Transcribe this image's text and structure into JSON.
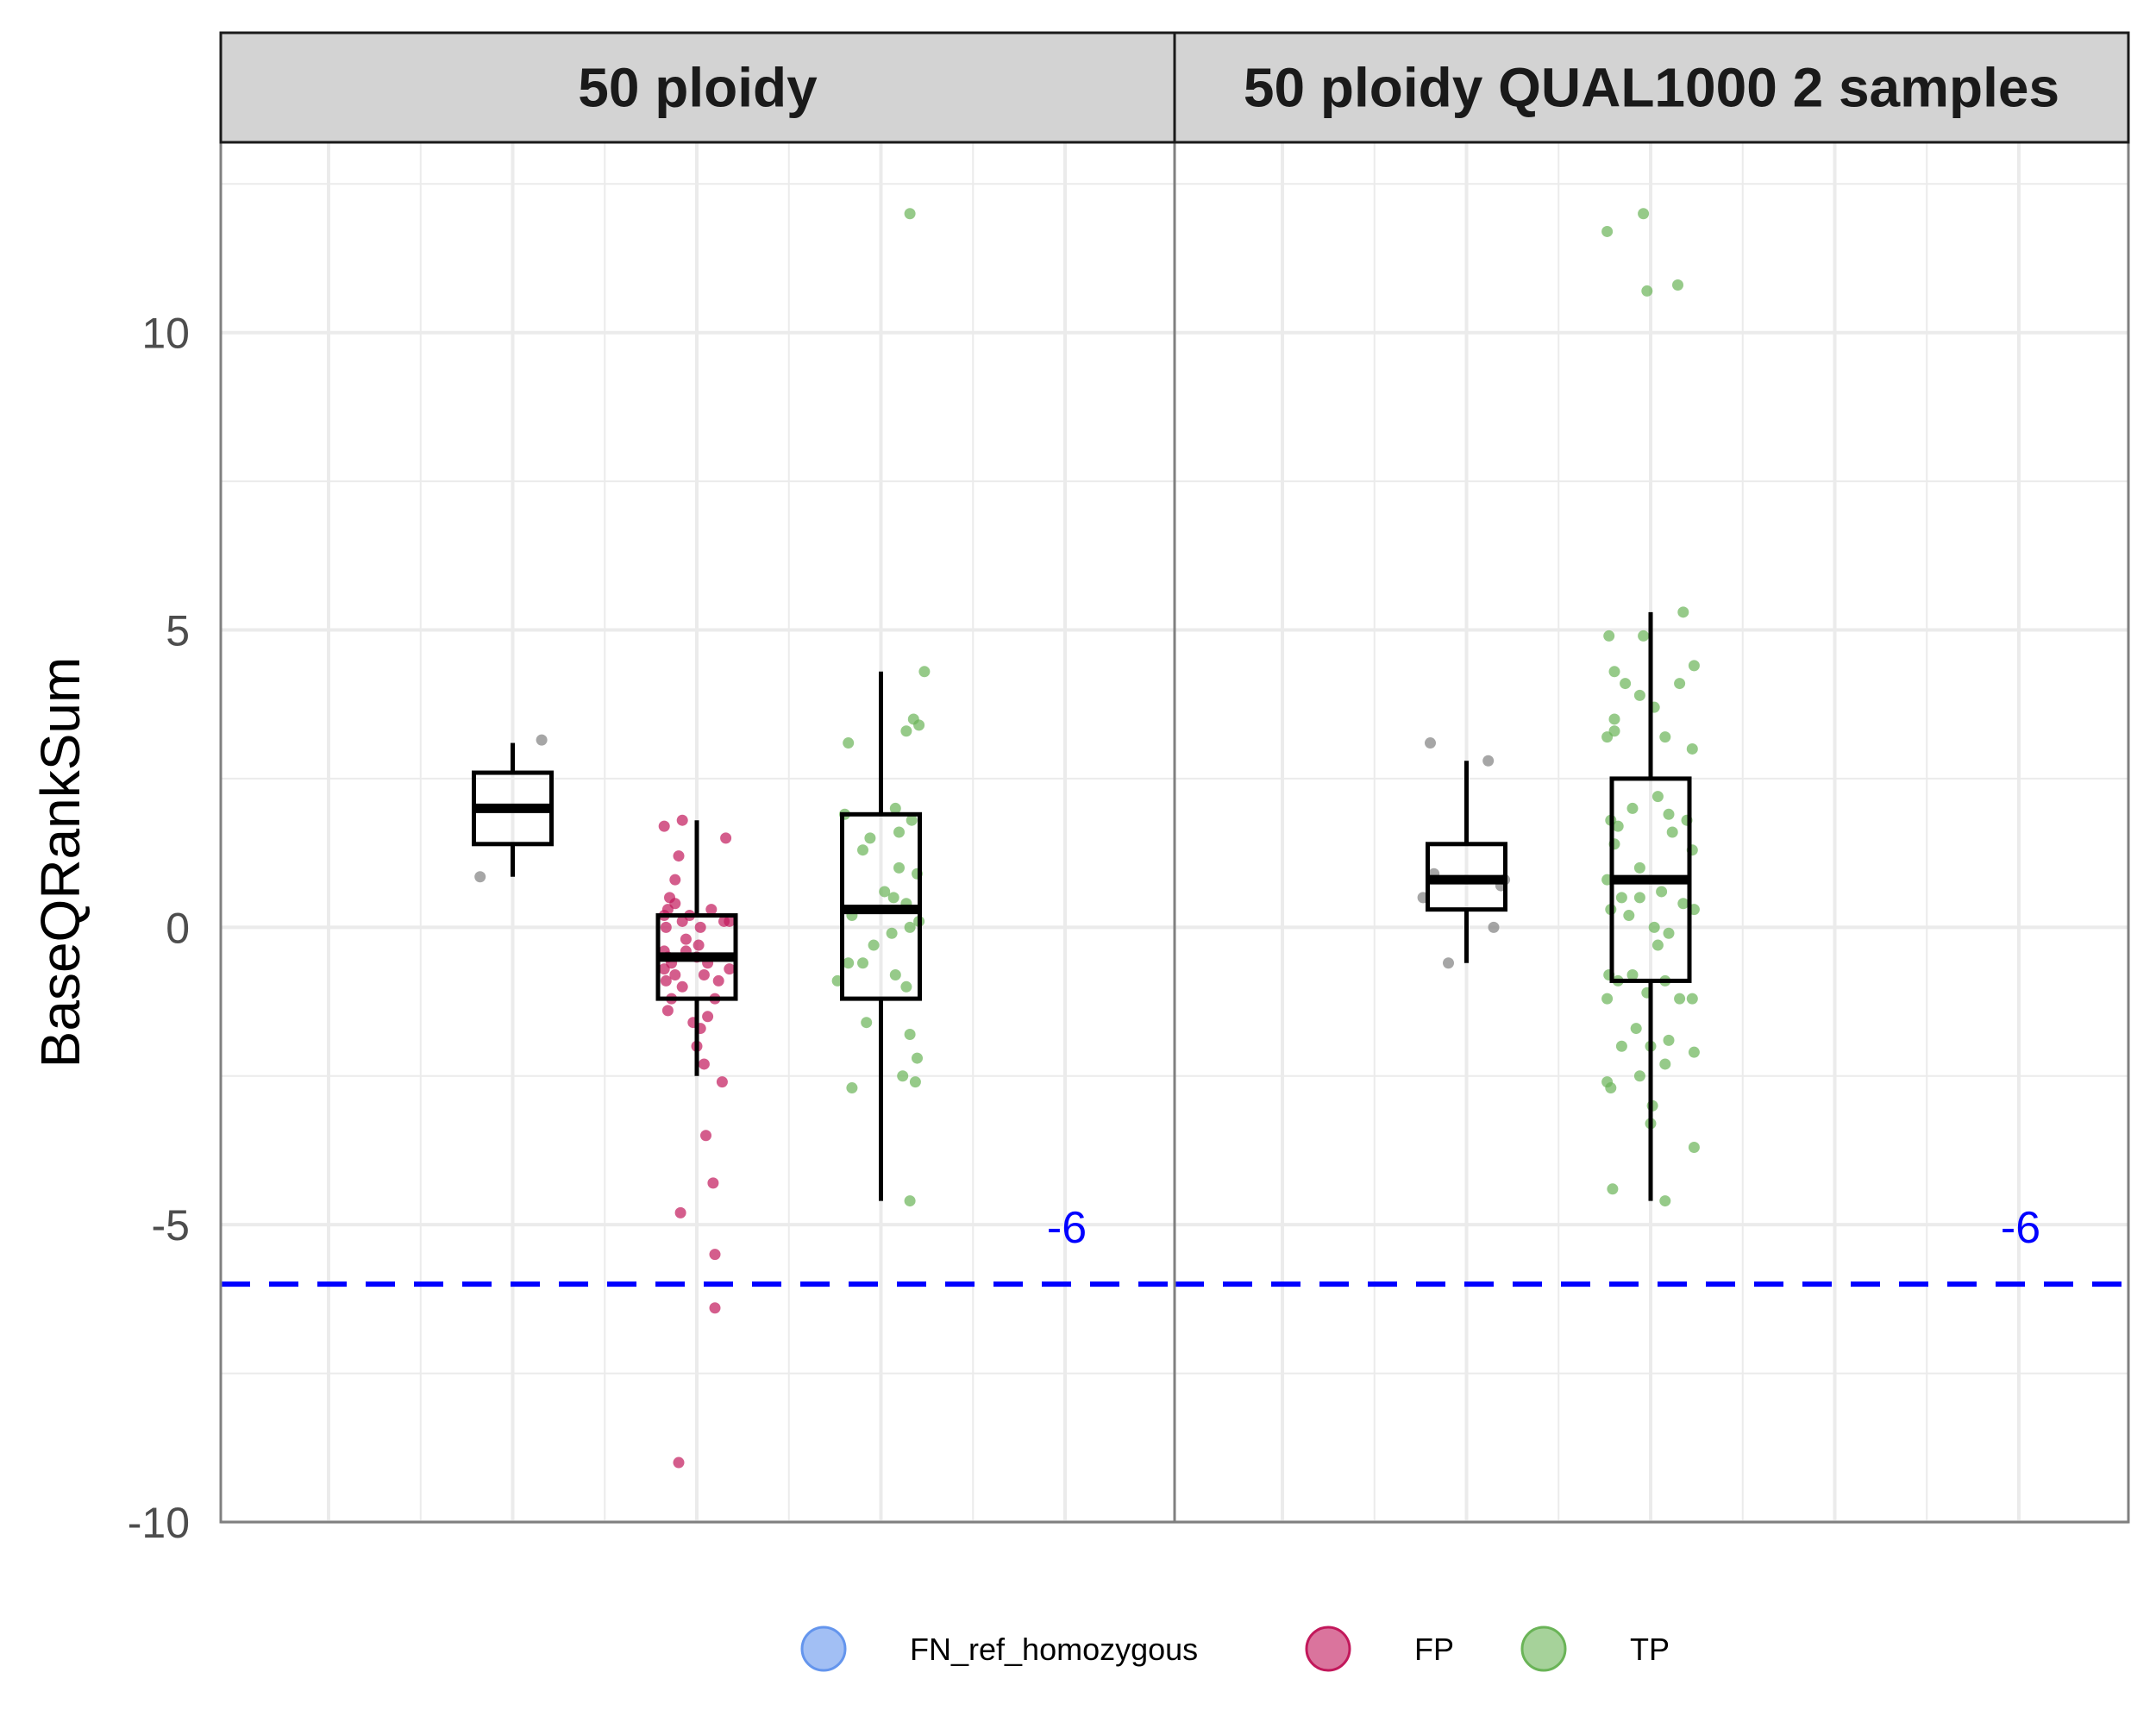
{
  "chart_data": {
    "type": "box",
    "ylabel": "BaseQRankSum",
    "xlabel": "",
    "ylim": [
      -10,
      13.2
    ],
    "yticks": [
      "-10",
      "-5",
      "0",
      "5",
      "10"
    ],
    "grid": true,
    "legend_position": "bottom",
    "legend": [
      {
        "label": "FN_ref_homozygous",
        "color": "#6495ED"
      },
      {
        "label": "FP",
        "color": "#C2185B"
      },
      {
        "label": "TP",
        "color": "#6AB457"
      }
    ],
    "reference_line": {
      "y": -6,
      "label": "-6",
      "color": "#0000FF"
    },
    "panels": [
      {
        "title": "50 ploidy",
        "groups": [
          {
            "name": "",
            "color": "#808080",
            "box": {
              "lower": 1.4,
              "q1": 1.4,
              "median": 2.0,
              "q3": 2.6,
              "upper": 3.1,
              "whisker_low": 0.85,
              "whisker_high": 3.1
            },
            "points": [
              [
                -0.9,
                0.85
              ],
              [
                0.8,
                3.15
              ]
            ]
          },
          {
            "name": "FP",
            "color": "#C2185B",
            "box": {
              "q1": -1.2,
              "median": -0.5,
              "q3": 0.2,
              "whisker_low": -2.5,
              "whisker_high": 1.8
            },
            "points": [
              [
                -0.9,
                1.7
              ],
              [
                -0.4,
                1.8
              ],
              [
                -0.5,
                1.2
              ],
              [
                0.8,
                1.5
              ],
              [
                -0.6,
                0.8
              ],
              [
                -0.75,
                0.5
              ],
              [
                -0.6,
                0.4
              ],
              [
                -0.8,
                0.3
              ],
              [
                -0.9,
                0.2
              ],
              [
                -0.85,
                0.0
              ],
              [
                -0.4,
                0.1
              ],
              [
                0.4,
                0.3
              ],
              [
                0.75,
                0.1
              ],
              [
                0.9,
                0.1
              ],
              [
                -0.2,
                0.2
              ],
              [
                0.1,
                0.0
              ],
              [
                -0.9,
                -0.4
              ],
              [
                -0.8,
                -0.5
              ],
              [
                -0.9,
                -0.7
              ],
              [
                -0.7,
                -0.6
              ],
              [
                -0.6,
                -0.8
              ],
              [
                -0.3,
                -0.4
              ],
              [
                0.0,
                -0.5
              ],
              [
                0.3,
                -0.6
              ],
              [
                0.6,
                -0.9
              ],
              [
                0.9,
                -0.7
              ],
              [
                -0.85,
                -0.9
              ],
              [
                -0.7,
                -1.2
              ],
              [
                -0.8,
                -1.4
              ],
              [
                -0.4,
                -1.0
              ],
              [
                0.2,
                -0.8
              ],
              [
                0.5,
                -1.2
              ],
              [
                -0.1,
                -1.6
              ],
              [
                0.1,
                -1.7
              ],
              [
                0.3,
                -1.5
              ],
              [
                0.0,
                -2.0
              ],
              [
                0.2,
                -2.3
              ],
              [
                0.7,
                -2.6
              ],
              [
                0.25,
                -3.5
              ],
              [
                -0.45,
                -4.8
              ],
              [
                0.45,
                -4.3
              ],
              [
                0.5,
                -5.5
              ],
              [
                0.5,
                -6.4
              ],
              [
                -0.5,
                -9.0
              ],
              [
                -0.3,
                -0.2
              ],
              [
                0.05,
                -0.3
              ]
            ]
          },
          {
            "name": "TP",
            "color": "#6AB457",
            "box": {
              "q1": -1.2,
              "median": 0.3,
              "q3": 1.9,
              "whisker_low": -4.6,
              "whisker_high": 4.3
            },
            "points": [
              [
                0.8,
                12.0
              ],
              [
                1.2,
                4.3
              ],
              [
                -0.9,
                3.1
              ],
              [
                0.7,
                3.3
              ],
              [
                0.9,
                3.5
              ],
              [
                1.05,
                3.4
              ],
              [
                -1.0,
                1.9
              ],
              [
                0.4,
                2.0
              ],
              [
                -0.3,
                1.5
              ],
              [
                0.5,
                1.6
              ],
              [
                0.85,
                1.8
              ],
              [
                -0.5,
                1.3
              ],
              [
                0.5,
                1.0
              ],
              [
                1.0,
                0.9
              ],
              [
                0.1,
                0.6
              ],
              [
                0.35,
                0.5
              ],
              [
                0.7,
                0.4
              ],
              [
                -0.8,
                0.2
              ],
              [
                0.8,
                0.0
              ],
              [
                1.05,
                0.1
              ],
              [
                -0.5,
                -0.6
              ],
              [
                -1.2,
                -0.9
              ],
              [
                -0.9,
                -0.6
              ],
              [
                0.4,
                -0.8
              ],
              [
                0.7,
                -1.0
              ],
              [
                -0.4,
                -1.6
              ],
              [
                0.8,
                -1.8
              ],
              [
                1.0,
                -2.2
              ],
              [
                0.6,
                -2.5
              ],
              [
                -0.8,
                -2.7
              ],
              [
                0.95,
                -2.6
              ],
              [
                0.8,
                -4.6
              ],
              [
                -0.2,
                -0.3
              ],
              [
                0.3,
                -0.1
              ]
            ]
          }
        ]
      },
      {
        "title": "50 ploidy QUAL1000 2 samples",
        "groups": [
          {
            "name": "",
            "color": "#808080",
            "box": {
              "q1": 0.3,
              "median": 0.8,
              "q3": 1.4,
              "whisker_low": -0.6,
              "whisker_high": 2.8
            },
            "points": [
              [
                -1.0,
                3.1
              ],
              [
                0.6,
                2.8
              ],
              [
                -0.9,
                0.9
              ],
              [
                -1.2,
                0.5
              ],
              [
                1.05,
                0.8
              ],
              [
                0.95,
                0.7
              ],
              [
                -0.5,
                -0.6
              ],
              [
                0.75,
                0.0
              ]
            ]
          },
          {
            "name": "TP",
            "color": "#6AB457",
            "box": {
              "q1": -0.9,
              "median": 0.8,
              "q3": 2.5,
              "whisker_low": -4.6,
              "whisker_high": 5.3
            },
            "points": [
              [
                -1.2,
                11.7
              ],
              [
                -0.2,
                12.0
              ],
              [
                -0.1,
                10.7
              ],
              [
                0.75,
                10.8
              ],
              [
                -1.15,
                4.9
              ],
              [
                -0.2,
                4.9
              ],
              [
                0.9,
                5.3
              ],
              [
                1.2,
                4.4
              ],
              [
                -1.0,
                4.3
              ],
              [
                -0.7,
                4.1
              ],
              [
                -0.3,
                3.9
              ],
              [
                0.8,
                4.1
              ],
              [
                -1.2,
                3.2
              ],
              [
                -1.0,
                3.3
              ],
              [
                -1.0,
                3.5
              ],
              [
                0.1,
                3.7
              ],
              [
                0.4,
                3.2
              ],
              [
                1.15,
                3.0
              ],
              [
                -1.1,
                1.8
              ],
              [
                -1.0,
                1.4
              ],
              [
                -0.9,
                1.7
              ],
              [
                -0.5,
                2.0
              ],
              [
                0.2,
                2.2
              ],
              [
                0.5,
                1.9
              ],
              [
                1.0,
                1.8
              ],
              [
                1.15,
                1.3
              ],
              [
                0.6,
                1.6
              ],
              [
                -1.2,
                0.8
              ],
              [
                -1.1,
                0.3
              ],
              [
                -0.8,
                0.5
              ],
              [
                -0.3,
                0.5
              ],
              [
                0.1,
                0.0
              ],
              [
                0.5,
                -0.1
              ],
              [
                0.9,
                0.4
              ],
              [
                1.2,
                0.3
              ],
              [
                -1.15,
                -0.8
              ],
              [
                -0.9,
                -0.9
              ],
              [
                -0.5,
                -0.8
              ],
              [
                -0.1,
                -1.1
              ],
              [
                0.4,
                -0.9
              ],
              [
                0.8,
                -1.2
              ],
              [
                1.15,
                -1.2
              ],
              [
                -1.2,
                -1.2
              ],
              [
                -0.8,
                -2.0
              ],
              [
                -0.4,
                -1.7
              ],
              [
                0.0,
                -2.0
              ],
              [
                0.5,
                -1.9
              ],
              [
                1.2,
                -2.1
              ],
              [
                -1.2,
                -2.6
              ],
              [
                -1.1,
                -2.7
              ],
              [
                -0.3,
                -2.5
              ],
              [
                0.4,
                -2.3
              ],
              [
                1.2,
                -3.7
              ],
              [
                0.05,
                -3.0
              ],
              [
                0.0,
                -3.3
              ],
              [
                -1.05,
                -4.4
              ],
              [
                0.4,
                -4.6
              ],
              [
                -0.6,
                0.2
              ],
              [
                -0.3,
                1.0
              ],
              [
                0.2,
                -0.3
              ],
              [
                0.3,
                0.6
              ]
            ]
          }
        ]
      }
    ]
  }
}
